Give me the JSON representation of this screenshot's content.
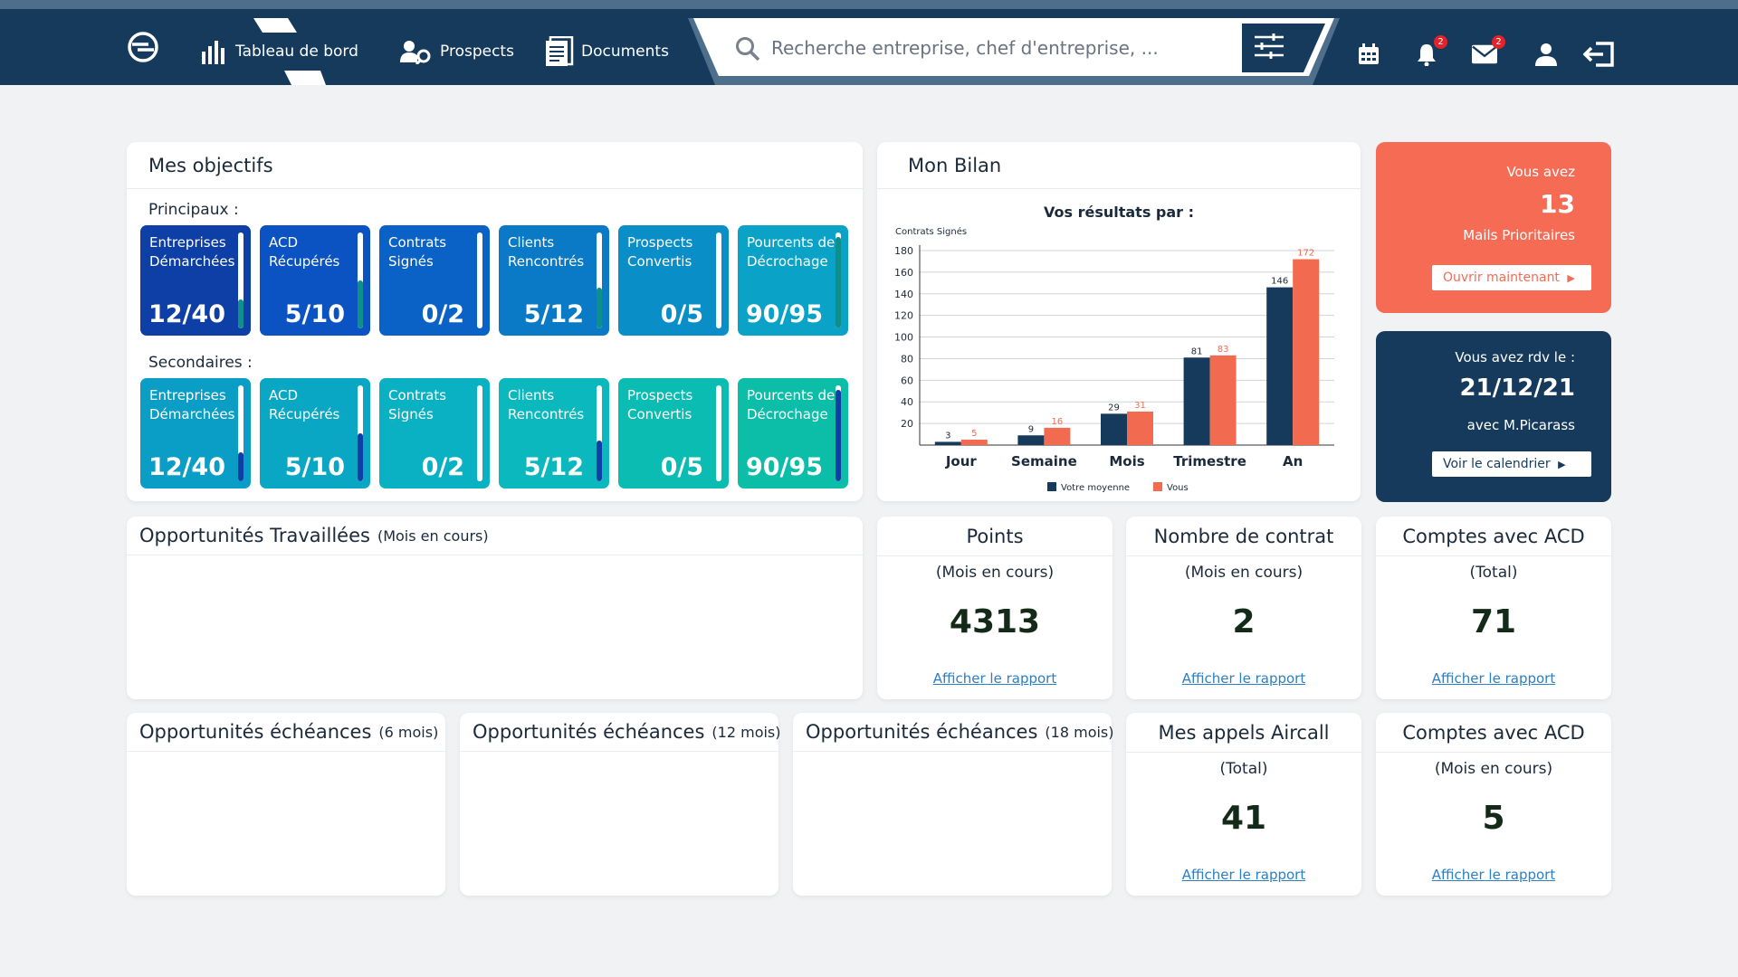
{
  "nav": {
    "dashboard": "Tableau de bord",
    "prospects": "Prospects",
    "documents": "Documents"
  },
  "search": {
    "placeholder": "Recherche entreprise, chef d'entreprise, ..."
  },
  "badges": {
    "notifications": "2",
    "mails": "2"
  },
  "objectives": {
    "title": "Mes objectifs",
    "primary_label": "Principaux :",
    "secondary_label": "Secondaires :",
    "primary": [
      {
        "label1": "Entreprises",
        "label2": "Démarchées",
        "value": "12/40",
        "progress": 0.3
      },
      {
        "label1": "ACD",
        "label2": "Récupérés",
        "value": "5/10",
        "progress": 0.5
      },
      {
        "label1": "Contrats",
        "label2": "Signés",
        "value": "0/2",
        "progress": 0.0
      },
      {
        "label1": "Clients",
        "label2": "Rencontrés",
        "value": "5/12",
        "progress": 0.42
      },
      {
        "label1": "Prospects",
        "label2": "Convertis",
        "value": "0/5",
        "progress": 0.0
      },
      {
        "label1": "Pourcents de",
        "label2": "Décrochage",
        "value": "90/95",
        "progress": 0.95
      }
    ],
    "secondary": [
      {
        "label1": "Entreprises",
        "label2": "Démarchées",
        "value": "12/40",
        "progress": 0.3
      },
      {
        "label1": "ACD",
        "label2": "Récupérés",
        "value": "5/10",
        "progress": 0.5
      },
      {
        "label1": "Contrats",
        "label2": "Signés",
        "value": "0/2",
        "progress": 0.0
      },
      {
        "label1": "Clients",
        "label2": "Rencontrés",
        "value": "5/12",
        "progress": 0.42
      },
      {
        "label1": "Prospects",
        "label2": "Convertis",
        "value": "0/5",
        "progress": 0.0
      },
      {
        "label1": "Pourcents de",
        "label2": "Décrochage",
        "value": "90/95",
        "progress": 0.95
      }
    ],
    "colors": {
      "primary": [
        "#0d3fa6",
        "#0b52c2",
        "#0b62c6",
        "#0a79c6",
        "#0a8ec8",
        "#0aa2c6"
      ],
      "secondary": [
        "#0a9ec6",
        "#0aa7c4",
        "#0ab1c2",
        "#0ab8bd",
        "#0bbcb2",
        "#0cbda8"
      ],
      "primary_fill": "#0f8f8a",
      "secondary_fill": "#0d3fa6"
    }
  },
  "bilan": {
    "title": "Mon Bilan"
  },
  "chart_data": {
    "type": "bar",
    "title": "Vos résultats par :",
    "ylabel": "Contrats Signés",
    "xlabel": "",
    "categories": [
      "Jour",
      "Semaine",
      "Mois",
      "Trimestre",
      "An"
    ],
    "series": [
      {
        "name": "Votre moyenne",
        "color": "#163a5c",
        "values": [
          3,
          9,
          29,
          81,
          146
        ]
      },
      {
        "name": "Vous",
        "color": "#f26b50",
        "values": [
          5,
          16,
          31,
          83,
          172
        ]
      }
    ],
    "ylim": [
      0,
      180
    ],
    "yticks": [
      20,
      40,
      60,
      80,
      100,
      120,
      140,
      160,
      180
    ],
    "grid": true,
    "legend_position": "bottom"
  },
  "mails_card": {
    "line1": "Vous avez",
    "count": "13",
    "line2": "Mails Prioritaires",
    "button": "Ouvrir maintenant",
    "color": "#f56b53"
  },
  "rdv_card": {
    "line1": "Vous avez rdv le :",
    "date": "21/12/21",
    "line2": "avec M.Picarass",
    "button": "Voir le calendrier",
    "color": "#163a5c"
  },
  "opportunities_worked": {
    "title": "Opportunités Travaillées",
    "sub": "(Mois en cours)"
  },
  "stats_row1": [
    {
      "title": "Points",
      "sub": "(Mois en cours)",
      "value": "4313",
      "link": "Afficher le rapport"
    },
    {
      "title": "Nombre de contrat",
      "sub": "(Mois en cours)",
      "value": "2",
      "link": "Afficher le rapport"
    },
    {
      "title": "Comptes avec ACD",
      "sub": "(Total)",
      "value": "71",
      "link": "Afficher le rapport"
    }
  ],
  "opp_deadlines": [
    {
      "title": "Opportunités échéances",
      "sub": "(6 mois)"
    },
    {
      "title": "Opportunités échéances",
      "sub": "(12 mois)"
    },
    {
      "title": "Opportunités échéances",
      "sub": "(18 mois)"
    }
  ],
  "stats_row2": [
    {
      "title": "Mes appels Aircall",
      "sub": "(Total)",
      "value": "41",
      "link": "Afficher le rapport"
    },
    {
      "title": "Comptes avec ACD",
      "sub": "(Mois en cours)",
      "value": "5",
      "link": "Afficher le rapport"
    }
  ]
}
